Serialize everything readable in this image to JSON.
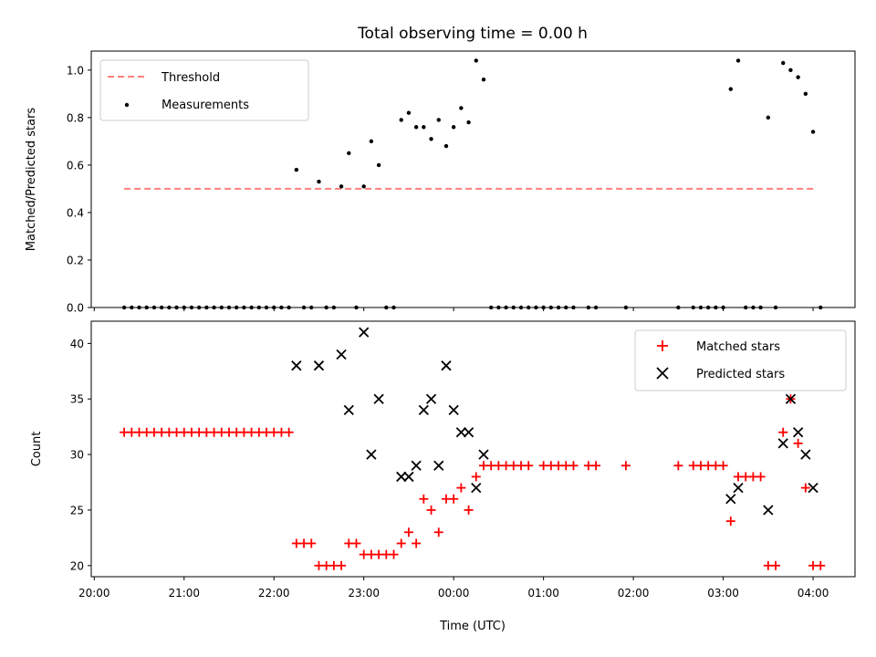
{
  "chart_data": {
    "title": "Total observing time = 0.00 h",
    "xlabel": "Time (UTC)",
    "x_tick_labels": [
      "20:00",
      "21:00",
      "22:00",
      "23:00",
      "00:00",
      "01:00",
      "02:00",
      "03:00",
      "04:00"
    ],
    "xlim": [
      "19:58",
      "04:28"
    ],
    "colors": {
      "threshold": "#ff7f7f",
      "measurements": "#000000",
      "matched": "#ff0000",
      "predicted": "#000000"
    },
    "panels": [
      {
        "type": "scatter",
        "ylabel": "Matched/Predicted stars",
        "ylim": [
          0,
          1.08
        ],
        "y_ticks": [
          "0.0",
          "0.2",
          "0.4",
          "0.6",
          "0.8",
          "1.0"
        ],
        "legend_position": "upper left",
        "series": [
          {
            "name": "Threshold",
            "type": "line",
            "style": "dashed",
            "x": [
              "20:20",
              "04:02"
            ],
            "y": [
              0.5,
              0.5
            ]
          },
          {
            "name": "Measurements",
            "type": "scatter",
            "points": [
              [
                "20:20",
                0
              ],
              [
                "20:25",
                0
              ],
              [
                "20:30",
                0
              ],
              [
                "20:35",
                0
              ],
              [
                "20:40",
                0
              ],
              [
                "20:45",
                0
              ],
              [
                "20:50",
                0
              ],
              [
                "20:55",
                0
              ],
              [
                "21:00",
                0
              ],
              [
                "21:05",
                0
              ],
              [
                "21:10",
                0
              ],
              [
                "21:15",
                0
              ],
              [
                "21:20",
                0
              ],
              [
                "21:25",
                0
              ],
              [
                "21:30",
                0
              ],
              [
                "21:35",
                0
              ],
              [
                "21:40",
                0
              ],
              [
                "21:45",
                0
              ],
              [
                "21:50",
                0
              ],
              [
                "21:55",
                0
              ],
              [
                "22:00",
                0
              ],
              [
                "22:05",
                0
              ],
              [
                "22:10",
                0
              ],
              [
                "22:15",
                0.58
              ],
              [
                "22:20",
                0
              ],
              [
                "22:25",
                0
              ],
              [
                "22:30",
                0.53
              ],
              [
                "22:35",
                0
              ],
              [
                "22:40",
                0
              ],
              [
                "22:45",
                0.51
              ],
              [
                "22:50",
                0.65
              ],
              [
                "22:55",
                0
              ],
              [
                "23:00",
                0.51
              ],
              [
                "23:05",
                0.7
              ],
              [
                "23:10",
                0.6
              ],
              [
                "23:15",
                0
              ],
              [
                "23:20",
                0
              ],
              [
                "23:25",
                0.79
              ],
              [
                "23:30",
                0.82
              ],
              [
                "23:35",
                0.76
              ],
              [
                "23:40",
                0.76
              ],
              [
                "23:45",
                0.71
              ],
              [
                "23:50",
                0.79
              ],
              [
                "23:55",
                0.68
              ],
              [
                "00:00",
                0.76
              ],
              [
                "00:05",
                0.84
              ],
              [
                "00:10",
                0.78
              ],
              [
                "00:15",
                1.04
              ],
              [
                "00:20",
                0.96
              ],
              [
                "00:25",
                0
              ],
              [
                "00:30",
                0
              ],
              [
                "00:35",
                0
              ],
              [
                "00:40",
                0
              ],
              [
                "00:45",
                0
              ],
              [
                "00:50",
                0
              ],
              [
                "00:55",
                0
              ],
              [
                "01:00",
                0
              ],
              [
                "01:05",
                0
              ],
              [
                "01:10",
                0
              ],
              [
                "01:15",
                0
              ],
              [
                "01:20",
                0
              ],
              [
                "01:30",
                0
              ],
              [
                "01:35",
                0
              ],
              [
                "01:55",
                0
              ],
              [
                "02:30",
                0
              ],
              [
                "02:40",
                0
              ],
              [
                "02:45",
                0
              ],
              [
                "02:50",
                0
              ],
              [
                "02:55",
                0
              ],
              [
                "03:00",
                0
              ],
              [
                "03:05",
                0.92
              ],
              [
                "03:10",
                1.04
              ],
              [
                "03:15",
                0
              ],
              [
                "03:20",
                0
              ],
              [
                "03:25",
                0
              ],
              [
                "03:30",
                0.8
              ],
              [
                "03:35",
                0
              ],
              [
                "03:40",
                1.03
              ],
              [
                "03:45",
                1.0
              ],
              [
                "03:50",
                0.97
              ],
              [
                "03:55",
                0.9
              ],
              [
                "04:00",
                0.74
              ],
              [
                "04:05",
                0
              ]
            ]
          }
        ]
      },
      {
        "type": "scatter",
        "ylabel": "Count",
        "ylim": [
          19,
          42
        ],
        "y_ticks": [
          "20",
          "25",
          "30",
          "35",
          "40"
        ],
        "legend_position": "upper right",
        "series": [
          {
            "name": "Matched stars",
            "marker": "plus",
            "points": [
              [
                "20:20",
                32
              ],
              [
                "20:25",
                32
              ],
              [
                "20:30",
                32
              ],
              [
                "20:35",
                32
              ],
              [
                "20:40",
                32
              ],
              [
                "20:45",
                32
              ],
              [
                "20:50",
                32
              ],
              [
                "20:55",
                32
              ],
              [
                "21:00",
                32
              ],
              [
                "21:05",
                32
              ],
              [
                "21:10",
                32
              ],
              [
                "21:15",
                32
              ],
              [
                "21:20",
                32
              ],
              [
                "21:25",
                32
              ],
              [
                "21:30",
                32
              ],
              [
                "21:35",
                32
              ],
              [
                "21:40",
                32
              ],
              [
                "21:45",
                32
              ],
              [
                "21:50",
                32
              ],
              [
                "21:55",
                32
              ],
              [
                "22:00",
                32
              ],
              [
                "22:05",
                32
              ],
              [
                "22:10",
                32
              ],
              [
                "22:15",
                22
              ],
              [
                "22:20",
                22
              ],
              [
                "22:25",
                22
              ],
              [
                "22:30",
                20
              ],
              [
                "22:35",
                20
              ],
              [
                "22:40",
                20
              ],
              [
                "22:45",
                20
              ],
              [
                "22:50",
                22
              ],
              [
                "22:55",
                22
              ],
              [
                "23:00",
                21
              ],
              [
                "23:05",
                21
              ],
              [
                "23:10",
                21
              ],
              [
                "23:15",
                21
              ],
              [
                "23:20",
                21
              ],
              [
                "23:25",
                22
              ],
              [
                "23:30",
                23
              ],
              [
                "23:35",
                22
              ],
              [
                "23:40",
                26
              ],
              [
                "23:45",
                25
              ],
              [
                "23:50",
                23
              ],
              [
                "23:55",
                26
              ],
              [
                "00:00",
                26
              ],
              [
                "00:05",
                27
              ],
              [
                "00:10",
                25
              ],
              [
                "00:15",
                28
              ],
              [
                "00:20",
                29
              ],
              [
                "00:25",
                29
              ],
              [
                "00:30",
                29
              ],
              [
                "00:35",
                29
              ],
              [
                "00:40",
                29
              ],
              [
                "00:45",
                29
              ],
              [
                "00:50",
                29
              ],
              [
                "01:00",
                29
              ],
              [
                "01:05",
                29
              ],
              [
                "01:10",
                29
              ],
              [
                "01:15",
                29
              ],
              [
                "01:20",
                29
              ],
              [
                "01:30",
                29
              ],
              [
                "01:35",
                29
              ],
              [
                "01:55",
                29
              ],
              [
                "02:30",
                29
              ],
              [
                "02:40",
                29
              ],
              [
                "02:45",
                29
              ],
              [
                "02:50",
                29
              ],
              [
                "02:55",
                29
              ],
              [
                "03:00",
                29
              ],
              [
                "03:05",
                24
              ],
              [
                "03:10",
                28
              ],
              [
                "03:15",
                28
              ],
              [
                "03:20",
                28
              ],
              [
                "03:25",
                28
              ],
              [
                "03:30",
                20
              ],
              [
                "03:35",
                20
              ],
              [
                "03:40",
                32
              ],
              [
                "03:45",
                35
              ],
              [
                "03:50",
                31
              ],
              [
                "03:55",
                27
              ],
              [
                "04:00",
                20
              ],
              [
                "04:05",
                20
              ]
            ]
          },
          {
            "name": "Predicted stars",
            "marker": "x",
            "points": [
              [
                "22:15",
                38
              ],
              [
                "22:30",
                38
              ],
              [
                "22:45",
                39
              ],
              [
                "22:50",
                34
              ],
              [
                "23:00",
                41
              ],
              [
                "23:05",
                30
              ],
              [
                "23:10",
                35
              ],
              [
                "23:25",
                28
              ],
              [
                "23:30",
                28
              ],
              [
                "23:35",
                29
              ],
              [
                "23:40",
                34
              ],
              [
                "23:45",
                35
              ],
              [
                "23:50",
                29
              ],
              [
                "23:55",
                38
              ],
              [
                "00:00",
                34
              ],
              [
                "00:05",
                32
              ],
              [
                "00:10",
                32
              ],
              [
                "00:15",
                27
              ],
              [
                "00:20",
                30
              ],
              [
                "03:05",
                26
              ],
              [
                "03:10",
                27
              ],
              [
                "03:30",
                25
              ],
              [
                "03:40",
                31
              ],
              [
                "03:45",
                35
              ],
              [
                "03:50",
                32
              ],
              [
                "03:55",
                30
              ],
              [
                "04:00",
                27
              ]
            ]
          }
        ]
      }
    ]
  }
}
